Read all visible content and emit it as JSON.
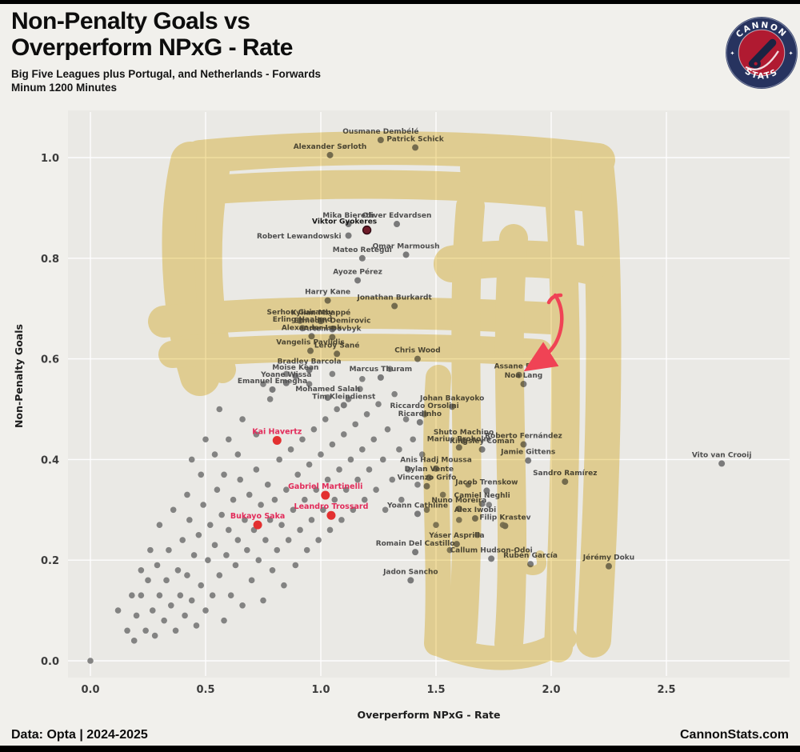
{
  "header": {
    "title_line1": "Non-Penalty Goals vs",
    "title_line2": "Overperform NPxG - Rate",
    "subtitle_line1": "Big Five Leagues plus Portugal, and Netherlands - Forwards",
    "subtitle_line2": "Minum 1200 Minutes"
  },
  "logo": {
    "top": "CANNON",
    "bottom": "STATS"
  },
  "footer": {
    "left": "Data: Opta | 2024-2025",
    "right": "CannonStats.com"
  },
  "chart_data": {
    "type": "scatter",
    "title": "Non-Penalty Goals vs Overperform NPxG - Rate",
    "xlabel": "Overperform NPxG - Rate",
    "ylabel": "Non-Penalty Goals",
    "xlim": [
      -0.1,
      3.05
    ],
    "ylim": [
      -0.03,
      1.09
    ],
    "x_ticks": [
      0.0,
      0.5,
      1.0,
      1.5,
      2.0,
      2.5
    ],
    "y_ticks": [
      0.0,
      0.2,
      0.4,
      0.6,
      0.8,
      1.0
    ],
    "grid": true,
    "colors": {
      "panel": "#eae9e5",
      "grid": "#ffffff",
      "dot": "#7a7a7a",
      "label": "#4e4e4e",
      "highlight": "#e33030",
      "red_label": "#e22b5a",
      "gyokeres": "#6e1b28",
      "highlighter": "#e7c243",
      "arrow": "#f04355"
    },
    "players": [
      {
        "n": "Ousmane Dembélé",
        "x": 1.26,
        "y": 1.035,
        "k": "g"
      },
      {
        "n": "Patrick Schick",
        "x": 1.41,
        "y": 1.02,
        "k": "g"
      },
      {
        "n": "Alexander Sørloth",
        "x": 1.04,
        "y": 1.005,
        "k": "g"
      },
      {
        "n": "Mika Biereth",
        "x": 1.12,
        "y": 0.868,
        "k": "g"
      },
      {
        "n": "Oliver Edvardsen",
        "x": 1.33,
        "y": 0.868,
        "k": "g"
      },
      {
        "n": "Viktor Gyokeres",
        "x": 1.2,
        "y": 0.856,
        "k": "m",
        "dx": -28
      },
      {
        "n": "Robert Lewandowski",
        "x": 1.12,
        "y": 0.845,
        "k": "g",
        "o": "left"
      },
      {
        "n": "Omar Marmoush",
        "x": 1.37,
        "y": 0.807,
        "k": "g"
      },
      {
        "n": "Mateo Retegui",
        "x": 1.18,
        "y": 0.8,
        "k": "g"
      },
      {
        "n": "Ayoze Pérez",
        "x": 1.16,
        "y": 0.756,
        "k": "g"
      },
      {
        "n": "Harry Kane",
        "x": 1.03,
        "y": 0.716,
        "k": "g"
      },
      {
        "n": "Jonathan Burkardt",
        "x": 1.32,
        "y": 0.705,
        "k": "g"
      },
      {
        "n": "Serhou Guirassy",
        "x": 0.91,
        "y": 0.676,
        "k": "g"
      },
      {
        "n": "Kylian Mbappé",
        "x": 1.0,
        "y": 0.675,
        "k": "g"
      },
      {
        "n": "Erling Haaland",
        "x": 0.92,
        "y": 0.661,
        "k": "g"
      },
      {
        "n": "Ermedin Demirovic",
        "x": 1.05,
        "y": 0.659,
        "k": "g"
      },
      {
        "n": "Alexander Isak",
        "x": 0.96,
        "y": 0.645,
        "k": "g"
      },
      {
        "n": "Artem Dovbyk",
        "x": 1.05,
        "y": 0.643,
        "k": "g"
      },
      {
        "n": "Vangelis Pavlidis",
        "x": 0.955,
        "y": 0.616,
        "k": "g"
      },
      {
        "n": "Leroy Sané",
        "x": 1.07,
        "y": 0.61,
        "k": "g"
      },
      {
        "n": "Chris Wood",
        "x": 1.42,
        "y": 0.6,
        "k": "g"
      },
      {
        "n": "Bradley Barcola",
        "x": 0.95,
        "y": 0.578,
        "k": "g"
      },
      {
        "n": "Moise Kean",
        "x": 0.89,
        "y": 0.566,
        "k": "g"
      },
      {
        "n": "Marcus Thuram",
        "x": 1.26,
        "y": 0.563,
        "k": "g"
      },
      {
        "n": "Yoane Wissa",
        "x": 0.85,
        "y": 0.552,
        "k": "g"
      },
      {
        "n": "Emanuel Emegha",
        "x": 0.79,
        "y": 0.539,
        "k": "g"
      },
      {
        "n": "Mohamed Salah",
        "x": 1.03,
        "y": 0.523,
        "k": "g"
      },
      {
        "n": "Tim Kleindienst",
        "x": 1.1,
        "y": 0.508,
        "k": "g"
      },
      {
        "n": "Johan Bakayoko",
        "x": 1.57,
        "y": 0.505,
        "k": "g"
      },
      {
        "n": "Riccardo Orsolini",
        "x": 1.45,
        "y": 0.49,
        "k": "g"
      },
      {
        "n": "Ricardinho",
        "x": 1.43,
        "y": 0.474,
        "k": "g"
      },
      {
        "n": "Assane Diao",
        "x": 1.86,
        "y": 0.568,
        "k": "g"
      },
      {
        "n": "Noa Lang",
        "x": 1.88,
        "y": 0.55,
        "k": "g"
      },
      {
        "n": "Kai Havertz",
        "x": 0.81,
        "y": 0.438,
        "k": "r"
      },
      {
        "n": "Shuto Machino",
        "x": 1.62,
        "y": 0.437,
        "k": "g"
      },
      {
        "n": "Roberto Fernández",
        "x": 1.88,
        "y": 0.43,
        "k": "g"
      },
      {
        "n": "Marius Broholm",
        "x": 1.6,
        "y": 0.424,
        "k": "g"
      },
      {
        "n": "Kingsley Coman",
        "x": 1.7,
        "y": 0.42,
        "k": "g"
      },
      {
        "n": "Jamie Gittens",
        "x": 1.9,
        "y": 0.398,
        "k": "g"
      },
      {
        "n": "Vito van Crooij",
        "x": 2.74,
        "y": 0.392,
        "k": "g"
      },
      {
        "n": "Anis Hadj Moussa",
        "x": 1.5,
        "y": 0.382,
        "k": "g"
      },
      {
        "n": "Sandro Ramírez",
        "x": 2.06,
        "y": 0.356,
        "k": "g"
      },
      {
        "n": "Dylan Vente",
        "x": 1.47,
        "y": 0.364,
        "k": "g"
      },
      {
        "n": "Vincenzo Grifo",
        "x": 1.46,
        "y": 0.347,
        "k": "g"
      },
      {
        "n": "Jacob Trenskow",
        "x": 1.72,
        "y": 0.338,
        "k": "g"
      },
      {
        "n": "Gabriel Martinelli",
        "x": 1.02,
        "y": 0.329,
        "k": "r"
      },
      {
        "n": "Camiel Neghli",
        "x": 1.7,
        "y": 0.312,
        "k": "g"
      },
      {
        "n": "Nuno Moreira",
        "x": 1.6,
        "y": 0.302,
        "k": "g"
      },
      {
        "n": "Yoann Cathline",
        "x": 1.42,
        "y": 0.292,
        "k": "g"
      },
      {
        "n": "Leandro Trossard",
        "x": 1.045,
        "y": 0.289,
        "k": "r"
      },
      {
        "n": "Alex Iwobi",
        "x": 1.67,
        "y": 0.283,
        "k": "g"
      },
      {
        "n": "Bukayo Saka",
        "x": 0.726,
        "y": 0.27,
        "k": "r"
      },
      {
        "n": "Filip Krastev",
        "x": 1.8,
        "y": 0.268,
        "k": "g"
      },
      {
        "n": "Yáser Asprilla",
        "x": 1.59,
        "y": 0.232,
        "k": "g"
      },
      {
        "n": "Romain Del Castillo",
        "x": 1.41,
        "y": 0.216,
        "k": "g"
      },
      {
        "n": "Callum Hudson-Odoi",
        "x": 1.74,
        "y": 0.203,
        "k": "g"
      },
      {
        "n": "Rubén García",
        "x": 1.91,
        "y": 0.192,
        "k": "g"
      },
      {
        "n": "Jérémy Doku",
        "x": 2.25,
        "y": 0.188,
        "k": "g"
      },
      {
        "n": "Jadon Sancho",
        "x": 1.39,
        "y": 0.16,
        "k": "g"
      }
    ],
    "background_points": [
      [
        0.0,
        0.0
      ],
      [
        0.12,
        0.1
      ],
      [
        0.16,
        0.06
      ],
      [
        0.19,
        0.04
      ],
      [
        0.2,
        0.09
      ],
      [
        0.22,
        0.13
      ],
      [
        0.24,
        0.06
      ],
      [
        0.25,
        0.16
      ],
      [
        0.27,
        0.1
      ],
      [
        0.28,
        0.05
      ],
      [
        0.29,
        0.19
      ],
      [
        0.3,
        0.13
      ],
      [
        0.32,
        0.08
      ],
      [
        0.33,
        0.16
      ],
      [
        0.34,
        0.22
      ],
      [
        0.35,
        0.11
      ],
      [
        0.37,
        0.06
      ],
      [
        0.38,
        0.18
      ],
      [
        0.39,
        0.13
      ],
      [
        0.4,
        0.24
      ],
      [
        0.41,
        0.09
      ],
      [
        0.42,
        0.17
      ],
      [
        0.43,
        0.28
      ],
      [
        0.44,
        0.12
      ],
      [
        0.45,
        0.21
      ],
      [
        0.46,
        0.07
      ],
      [
        0.47,
        0.25
      ],
      [
        0.48,
        0.15
      ],
      [
        0.49,
        0.31
      ],
      [
        0.5,
        0.1
      ],
      [
        0.51,
        0.2
      ],
      [
        0.52,
        0.27
      ],
      [
        0.53,
        0.13
      ],
      [
        0.54,
        0.23
      ],
      [
        0.55,
        0.34
      ],
      [
        0.56,
        0.17
      ],
      [
        0.57,
        0.29
      ],
      [
        0.58,
        0.08
      ],
      [
        0.59,
        0.21
      ],
      [
        0.6,
        0.26
      ],
      [
        0.61,
        0.13
      ],
      [
        0.62,
        0.32
      ],
      [
        0.63,
        0.19
      ],
      [
        0.64,
        0.24
      ],
      [
        0.65,
        0.36
      ],
      [
        0.66,
        0.11
      ],
      [
        0.67,
        0.28
      ],
      [
        0.68,
        0.22
      ],
      [
        0.69,
        0.33
      ],
      [
        0.7,
        0.16
      ],
      [
        0.71,
        0.26
      ],
      [
        0.72,
        0.38
      ],
      [
        0.73,
        0.2
      ],
      [
        0.74,
        0.31
      ],
      [
        0.75,
        0.12
      ],
      [
        0.76,
        0.24
      ],
      [
        0.77,
        0.35
      ],
      [
        0.78,
        0.28
      ],
      [
        0.79,
        0.18
      ],
      [
        0.8,
        0.32
      ],
      [
        0.81,
        0.22
      ],
      [
        0.82,
        0.4
      ],
      [
        0.83,
        0.27
      ],
      [
        0.84,
        0.15
      ],
      [
        0.85,
        0.34
      ],
      [
        0.86,
        0.24
      ],
      [
        0.87,
        0.42
      ],
      [
        0.88,
        0.3
      ],
      [
        0.89,
        0.19
      ],
      [
        0.9,
        0.37
      ],
      [
        0.91,
        0.26
      ],
      [
        0.92,
        0.44
      ],
      [
        0.93,
        0.32
      ],
      [
        0.94,
        0.22
      ],
      [
        0.95,
        0.39
      ],
      [
        0.96,
        0.28
      ],
      [
        0.97,
        0.46
      ],
      [
        0.98,
        0.34
      ],
      [
        0.99,
        0.24
      ],
      [
        1.0,
        0.41
      ],
      [
        1.01,
        0.3
      ],
      [
        1.02,
        0.48
      ],
      [
        1.03,
        0.36
      ],
      [
        1.04,
        0.26
      ],
      [
        1.05,
        0.43
      ],
      [
        1.06,
        0.32
      ],
      [
        1.07,
        0.5
      ],
      [
        1.08,
        0.38
      ],
      [
        1.09,
        0.28
      ],
      [
        1.1,
        0.45
      ],
      [
        1.11,
        0.34
      ],
      [
        1.12,
        0.52
      ],
      [
        1.13,
        0.4
      ],
      [
        1.14,
        0.3
      ],
      [
        1.15,
        0.47
      ],
      [
        1.16,
        0.36
      ],
      [
        1.17,
        0.54
      ],
      [
        1.18,
        0.42
      ],
      [
        1.19,
        0.32
      ],
      [
        1.2,
        0.49
      ],
      [
        1.21,
        0.38
      ],
      [
        1.23,
        0.44
      ],
      [
        1.24,
        0.34
      ],
      [
        1.25,
        0.51
      ],
      [
        1.27,
        0.4
      ],
      [
        1.28,
        0.3
      ],
      [
        1.29,
        0.46
      ],
      [
        1.31,
        0.36
      ],
      [
        1.32,
        0.53
      ],
      [
        1.34,
        0.42
      ],
      [
        1.35,
        0.32
      ],
      [
        1.37,
        0.48
      ],
      [
        1.38,
        0.38
      ],
      [
        1.4,
        0.44
      ],
      [
        1.42,
        0.35
      ],
      [
        1.44,
        0.41
      ],
      [
        1.46,
        0.3
      ],
      [
        1.5,
        0.27
      ],
      [
        1.53,
        0.33
      ],
      [
        1.56,
        0.22
      ],
      [
        1.6,
        0.28
      ],
      [
        1.64,
        0.35
      ],
      [
        1.68,
        0.25
      ],
      [
        1.73,
        0.31
      ],
      [
        1.79,
        0.27
      ],
      [
        0.36,
        0.3
      ],
      [
        0.42,
        0.33
      ],
      [
        0.48,
        0.37
      ],
      [
        0.54,
        0.41
      ],
      [
        0.6,
        0.44
      ],
      [
        0.66,
        0.48
      ],
      [
        0.72,
        0.45
      ],
      [
        0.78,
        0.52
      ],
      [
        0.64,
        0.41
      ],
      [
        0.58,
        0.37
      ],
      [
        0.5,
        0.44
      ],
      [
        0.56,
        0.5
      ],
      [
        0.44,
        0.4
      ],
      [
        0.3,
        0.27
      ],
      [
        0.26,
        0.22
      ],
      [
        0.22,
        0.18
      ],
      [
        0.18,
        0.13
      ],
      [
        0.95,
        0.55
      ],
      [
        1.05,
        0.57
      ],
      [
        1.18,
        0.56
      ],
      [
        1.3,
        0.58
      ],
      [
        0.85,
        0.57
      ],
      [
        0.75,
        0.55
      ]
    ],
    "legend": null,
    "annotations": {
      "highlighter": true,
      "arrow_target": "Assane Diao / Noa Lang"
    }
  }
}
